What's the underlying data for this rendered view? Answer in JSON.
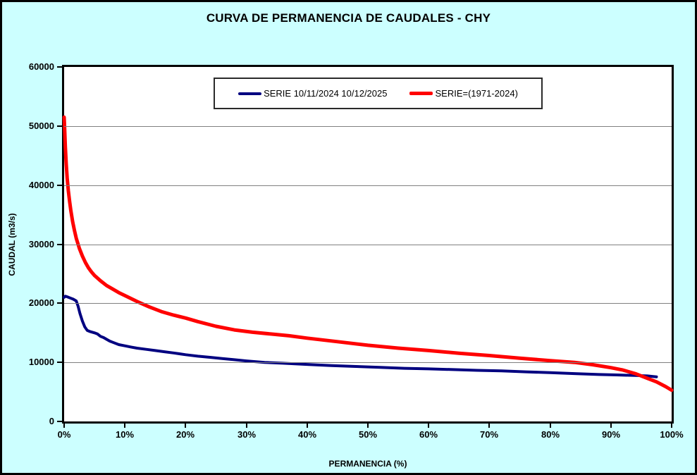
{
  "title": "CURVA DE PERMANENCIA DE CAUDALES - CHY",
  "colors": {
    "background": "#CCFFFF",
    "plot_background": "#FFFFFF",
    "grid": "#808080",
    "axis": "#000000",
    "legend_background": "#FFFFFF",
    "series_blue": "#000080",
    "series_red": "#FF0000"
  },
  "chart_data": {
    "type": "line",
    "title": "CURVA DE PERMANENCIA DE CAUDALES - CHY",
    "xlabel": "PERMANENCIA (%)",
    "ylabel": "CAUDAL (m3/s)",
    "xlim": [
      0,
      100
    ],
    "ylim": [
      0,
      60000
    ],
    "x_tick_values": [
      0,
      10,
      20,
      30,
      40,
      50,
      60,
      70,
      80,
      90,
      100
    ],
    "x_tick_labels": [
      "0%",
      "10%",
      "20%",
      "30%",
      "40%",
      "50%",
      "60%",
      "70%",
      "80%",
      "90%",
      "100%"
    ],
    "y_tick_values": [
      0,
      10000,
      20000,
      30000,
      40000,
      50000,
      60000
    ],
    "y_tick_labels": [
      "0",
      "10000",
      "20000",
      "30000",
      "40000",
      "50000",
      "60000"
    ],
    "grid": "horizontal-only",
    "legend_position": "top-center-inside",
    "series": [
      {
        "name": "SERIE 10/11/2024 10/12/2025",
        "color": "#000080",
        "stroke_width": 4,
        "x": [
          0,
          0.2,
          0.5,
          1.0,
          1.5,
          2.0,
          2.3,
          2.6,
          3.0,
          3.4,
          3.8,
          4.3,
          5.0,
          5.5,
          6.0,
          6.5,
          7.0,
          7.5,
          8.0,
          9.0,
          10.0,
          11.0,
          12.0,
          13.5,
          15.0,
          16.5,
          18.0,
          20.0,
          22.0,
          24.0,
          26.0,
          28.0,
          30.0,
          33.0,
          36.0,
          40.0,
          44.0,
          48.0,
          52.0,
          56.0,
          60.0,
          64.0,
          68.0,
          72.0,
          76.0,
          80.0,
          84.0,
          88.0,
          91.0,
          94.0,
          96.0,
          97.5
        ],
        "y": [
          21000,
          21200,
          21100,
          20900,
          20700,
          20400,
          19500,
          18300,
          17000,
          16000,
          15400,
          15200,
          15000,
          14800,
          14400,
          14200,
          13900,
          13600,
          13400,
          13000,
          12800,
          12600,
          12400,
          12200,
          12000,
          11800,
          11600,
          11300,
          11050,
          10850,
          10650,
          10450,
          10250,
          10000,
          9850,
          9650,
          9450,
          9300,
          9150,
          9000,
          8900,
          8780,
          8650,
          8550,
          8400,
          8250,
          8100,
          7950,
          7870,
          7780,
          7700,
          7550
        ]
      },
      {
        "name": "SERIE=(1971-2024)",
        "color": "#FF0000",
        "stroke_width": 5,
        "x": [
          0,
          0.05,
          0.1,
          0.2,
          0.35,
          0.5,
          0.7,
          0.9,
          1.1,
          1.4,
          1.7,
          2.0,
          2.5,
          3.0,
          3.5,
          4.0,
          4.5,
          5.0,
          6.0,
          7.0,
          8.0,
          9.0,
          10.0,
          12.0,
          14.0,
          16.0,
          18.0,
          20.0,
          22.0,
          25.0,
          28.0,
          31.0,
          34.0,
          37.0,
          40.0,
          45.0,
          50.0,
          55.0,
          60.0,
          65.0,
          70.0,
          75.0,
          80.0,
          84.0,
          87.0,
          90.0,
          92.0,
          94.0,
          96.0,
          97.5,
          99.0,
          100.0
        ],
        "y": [
          51500,
          50500,
          49000,
          46500,
          43500,
          41200,
          39000,
          37200,
          35700,
          33800,
          32300,
          31000,
          29300,
          28000,
          26900,
          26000,
          25300,
          24700,
          23800,
          23000,
          22400,
          21800,
          21300,
          20300,
          19400,
          18600,
          18000,
          17500,
          16900,
          16100,
          15500,
          15100,
          14800,
          14500,
          14100,
          13500,
          12900,
          12400,
          12000,
          11550,
          11150,
          10700,
          10300,
          10000,
          9600,
          9100,
          8700,
          8100,
          7300,
          6700,
          5900,
          5300
        ]
      }
    ]
  }
}
